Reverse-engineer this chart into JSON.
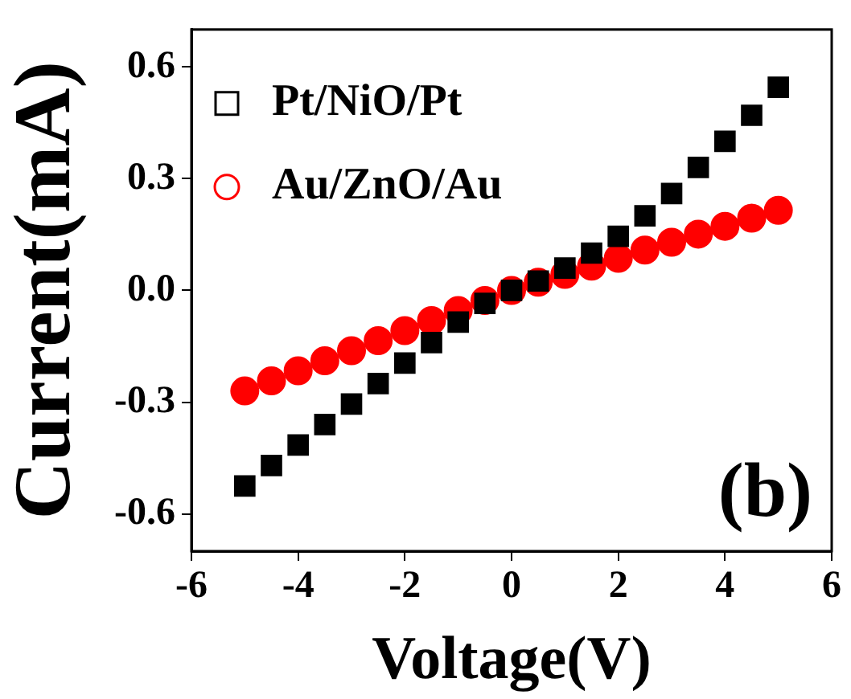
{
  "chart_data": {
    "type": "scatter",
    "xlabel": "Voltage(V)",
    "ylabel": "Current(mA)",
    "xlim": [
      -6,
      6
    ],
    "xticks": [
      -6,
      -4,
      -2,
      0,
      2,
      4,
      6
    ],
    "ylim": [
      -0.7,
      0.7
    ],
    "yticks": [
      {
        "value": 0.6,
        "label": "0.6"
      },
      {
        "value": 0.3,
        "label": "0.3"
      },
      {
        "value": 0,
        "label": "0.0"
      },
      {
        "value": -0.3,
        "label": "-0.3"
      },
      {
        "value": -0.6,
        "label": "-0.6"
      }
    ],
    "legend": "top left",
    "annotations": [
      "(b)"
    ],
    "x": [
      -5,
      -4.5,
      -4,
      -3.5,
      -3,
      -2.5,
      -2,
      -1.5,
      -1,
      -0.5,
      0,
      0.5,
      1,
      1.5,
      2,
      2.5,
      3,
      3.5,
      4,
      4.5,
      5
    ],
    "series": [
      {
        "name": "Pt/NiO/Pt",
        "color": "#000000",
        "marker": "square",
        "values": [
          -0.525,
          -0.47,
          -0.415,
          -0.36,
          -0.305,
          -0.25,
          -0.195,
          -0.14,
          -0.085,
          -0.035,
          0,
          0.025,
          0.06,
          0.1,
          0.145,
          0.2,
          0.26,
          0.33,
          0.4,
          0.47,
          0.545
        ]
      },
      {
        "name": "Au/ZnO/Au",
        "color": "#ff0000",
        "marker": "circle",
        "values": [
          -0.27,
          -0.243,
          -0.216,
          -0.189,
          -0.162,
          -0.135,
          -0.108,
          -0.081,
          -0.054,
          -0.027,
          0,
          0.022,
          0.043,
          0.065,
          0.086,
          0.108,
          0.129,
          0.151,
          0.172,
          0.194,
          0.215
        ]
      }
    ]
  }
}
